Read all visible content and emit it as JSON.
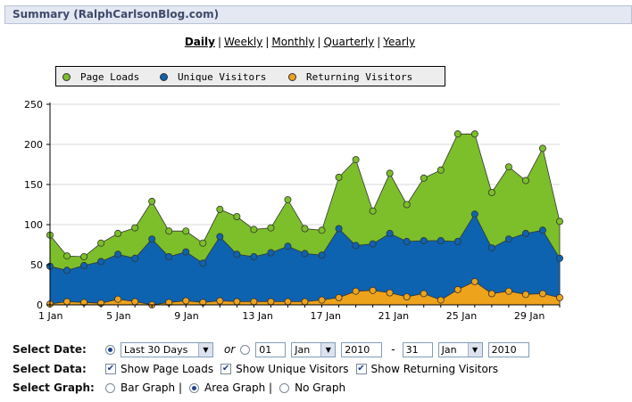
{
  "header": {
    "title": "Summary (RalphCarlsonBlog.com)"
  },
  "periods": [
    {
      "label": "Daily",
      "active": true
    },
    {
      "label": "Weekly",
      "active": false
    },
    {
      "label": "Monthly",
      "active": false
    },
    {
      "label": "Quarterly",
      "active": false
    },
    {
      "label": "Yearly",
      "active": false
    }
  ],
  "colors": {
    "page_loads": "#7cbf2a",
    "unique": "#0d63b0",
    "returning": "#eea31c"
  },
  "chart_data": {
    "type": "area",
    "title": "",
    "xlabel": "",
    "ylabel": "",
    "ylim": [
      0,
      250
    ],
    "yticks": [
      "0",
      "50",
      "100",
      "150",
      "200",
      "250"
    ],
    "xtick_labels": [
      {
        "day": 1,
        "label": "1 Jan"
      },
      {
        "day": 5,
        "label": "5 Jan"
      },
      {
        "day": 9,
        "label": "9 Jan"
      },
      {
        "day": 13,
        "label": "13 Jan"
      },
      {
        "day": 17,
        "label": "17 Jan"
      },
      {
        "day": 21,
        "label": "21 Jan"
      },
      {
        "day": 25,
        "label": "25 Jan"
      },
      {
        "day": 29,
        "label": "29 Jan"
      }
    ],
    "x": [
      1,
      2,
      3,
      4,
      5,
      6,
      7,
      8,
      9,
      10,
      11,
      12,
      13,
      14,
      15,
      16,
      17,
      18,
      19,
      20,
      21,
      22,
      23,
      24,
      25,
      26,
      27,
      28,
      29,
      30,
      31
    ],
    "grid": true,
    "legend": "top",
    "series": [
      {
        "name": "Page Loads",
        "values": [
          87,
          61,
          60,
          77,
          89,
          96,
          129,
          92,
          92,
          77,
          119,
          110,
          94,
          96,
          131,
          95,
          93,
          159,
          181,
          117,
          164,
          125,
          158,
          168,
          213,
          213,
          140,
          172,
          155,
          195,
          104
        ]
      },
      {
        "name": "Unique Visitors",
        "values": [
          48,
          43,
          49,
          54,
          63,
          58,
          82,
          60,
          66,
          52,
          85,
          63,
          60,
          65,
          73,
          64,
          62,
          95,
          74,
          76,
          89,
          79,
          80,
          80,
          79,
          113,
          71,
          82,
          89,
          93,
          58
        ]
      },
      {
        "name": "Returning Visitors",
        "values": [
          1,
          4,
          3,
          2,
          7,
          4,
          0,
          3,
          5,
          3,
          5,
          4,
          4,
          4,
          4,
          4,
          6,
          9,
          17,
          18,
          15,
          10,
          14,
          6,
          19,
          29,
          14,
          17,
          13,
          14,
          9
        ]
      }
    ]
  },
  "controls": {
    "select_date_label": "Select Date:",
    "range_value": "Last 30 Days",
    "or_text": "or",
    "from_day": "01",
    "from_month": "Jan",
    "from_year": "2010",
    "dash": "-",
    "to_day": "31",
    "to_month": "Jan",
    "to_year": "2010",
    "select_data_label": "Select Data:",
    "show_page_loads": "Show Page Loads",
    "show_unique": "Show Unique Visitors",
    "show_returning": "Show Returning Visitors",
    "select_graph_label": "Select Graph:",
    "bar_graph": "Bar Graph |",
    "area_graph": "Area Graph |",
    "no_graph": "No Graph"
  }
}
